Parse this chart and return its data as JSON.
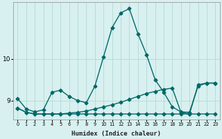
{
  "xlabel": "Humidex (Indice chaleur)",
  "background_color": "#d8f0f0",
  "grid_color": "#b8dcd8",
  "line_color": "#006868",
  "x_ticks": [
    0,
    1,
    2,
    3,
    4,
    5,
    6,
    7,
    8,
    9,
    10,
    11,
    12,
    13,
    14,
    15,
    16,
    17,
    18,
    19,
    20,
    21,
    22,
    23
  ],
  "y_ticks": [
    9,
    10
  ],
  "xlim": [
    -0.5,
    23.5
  ],
  "ylim": [
    8.55,
    11.35
  ],
  "series": [
    {
      "x": [
        0,
        1,
        2,
        3,
        4,
        5,
        6,
        7,
        8,
        9,
        10,
        11,
        12,
        13,
        14,
        15,
        16,
        17,
        18,
        19,
        20,
        21,
        22,
        23
      ],
      "y": [
        9.05,
        8.8,
        8.73,
        8.78,
        9.2,
        9.25,
        9.1,
        9.0,
        8.95,
        9.35,
        10.05,
        10.75,
        11.1,
        11.2,
        10.6,
        10.1,
        9.5,
        9.2,
        8.85,
        8.73,
        8.72,
        9.35,
        9.42,
        9.42
      ]
    },
    {
      "x": [
        0,
        1,
        2,
        3,
        4,
        5,
        6,
        7,
        8,
        9,
        10,
        11,
        12,
        13,
        14,
        15,
        16,
        17,
        18,
        19,
        20,
        21,
        22,
        23
      ],
      "y": [
        8.82,
        8.72,
        8.68,
        8.68,
        8.68,
        8.68,
        8.7,
        8.72,
        8.75,
        8.8,
        8.85,
        8.9,
        8.96,
        9.03,
        9.1,
        9.17,
        9.22,
        9.27,
        9.3,
        8.72,
        8.68,
        9.38,
        9.42,
        9.42
      ]
    },
    {
      "x": [
        0,
        1,
        2,
        3,
        4,
        5,
        6,
        7,
        8,
        9,
        10,
        11,
        12,
        13,
        14,
        15,
        16,
        17,
        18,
        19,
        20,
        21,
        22,
        23
      ],
      "y": [
        8.82,
        8.72,
        8.68,
        8.68,
        8.68,
        8.68,
        8.68,
        8.68,
        8.68,
        8.68,
        8.68,
        8.68,
        8.68,
        8.68,
        8.68,
        8.68,
        8.68,
        8.68,
        8.68,
        8.68,
        8.68,
        8.68,
        8.68,
        8.68
      ]
    }
  ],
  "marker": "D",
  "markersize": 2.5,
  "linewidth": 1.0
}
